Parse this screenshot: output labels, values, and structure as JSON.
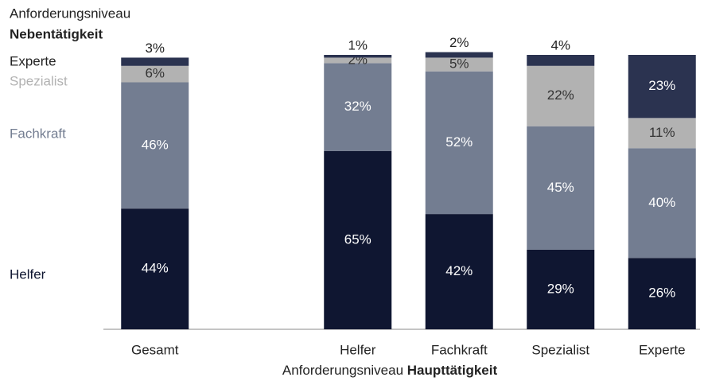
{
  "chart_data": {
    "type": "stacked_bar",
    "legend_title": "Anforderungsniveau",
    "legend_subtitle": "Nebentätigkeit",
    "x_label": "Anforderungsniveau",
    "x_label_bold": "Haupttätigkeit",
    "categories": [
      "Gesamt",
      null,
      "Helfer",
      "Fachkraft",
      "Spezialist",
      "Experte"
    ],
    "ylim": [
      0,
      100
    ],
    "series": [
      {
        "name": "Helfer",
        "color": "#0f1631",
        "values": [
          44,
          null,
          65,
          42,
          29,
          26
        ],
        "value_labels": [
          "44%",
          null,
          "65%",
          "42%",
          "29%",
          "26%"
        ]
      },
      {
        "name": "Fachkraft",
        "color": "#737d91",
        "values": [
          46,
          null,
          32,
          52,
          45,
          40
        ],
        "value_labels": [
          "46%",
          null,
          "32%",
          "52%",
          "45%",
          "40%"
        ]
      },
      {
        "name": "Spezialist",
        "color": "#b2b2b2",
        "values": [
          6,
          null,
          2,
          5,
          22,
          11
        ],
        "value_labels": [
          "6%",
          null,
          "2%",
          "5%",
          "22%",
          "11%"
        ]
      },
      {
        "name": "Experte",
        "color": "#2b3350",
        "values": [
          3,
          null,
          1,
          2,
          4,
          23
        ],
        "value_labels": [
          "3%",
          null,
          "1%",
          "2%",
          "4%",
          "23%"
        ]
      }
    ]
  }
}
